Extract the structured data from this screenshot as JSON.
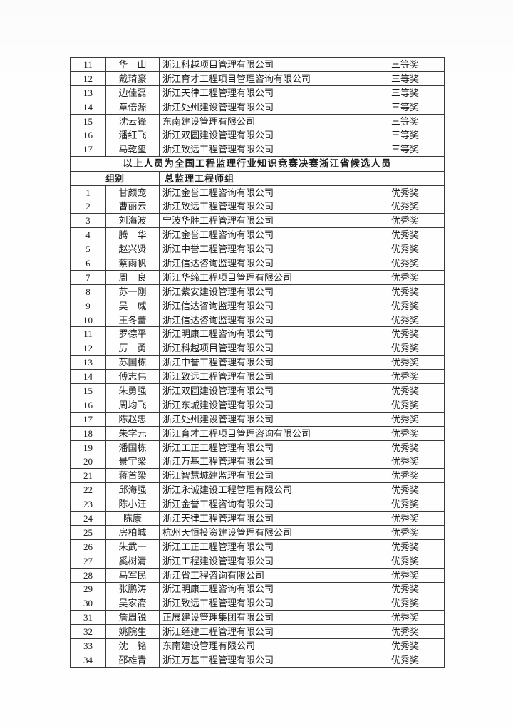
{
  "page": {
    "background": "#fefefe",
    "text_color": "#1c1c1c",
    "border_color": "#3a3a3a"
  },
  "table": {
    "third_prize_section": {
      "award_label": "三等奖",
      "rows": [
        {
          "no": "11",
          "name": "华　山",
          "company": "浙江科越项目管理有限公司",
          "award": "三等奖"
        },
        {
          "no": "12",
          "name": "戴琦豪",
          "company": "浙江育才工程项目管理咨询有限公司",
          "award": "三等奖"
        },
        {
          "no": "13",
          "name": "边佳磊",
          "company": "浙江天律工程管理有限公司",
          "award": "三等奖"
        },
        {
          "no": "14",
          "name": "章倍源",
          "company": "浙江处州建设管理有限公司",
          "award": "三等奖"
        },
        {
          "no": "15",
          "name": "沈云锋",
          "company": "东南建设管理有限公司",
          "award": "三等奖"
        },
        {
          "no": "16",
          "name": "潘红飞",
          "company": "浙江双圆建设管理有限公司",
          "award": "三等奖"
        },
        {
          "no": "17",
          "name": "马乾玺",
          "company": "浙江致远工程管理有限公司",
          "award": "三等奖"
        }
      ]
    },
    "banner": "以上人员为全国工程监理行业知识竞赛决赛浙江省候选人员",
    "group_row": {
      "label": "组别",
      "value": "总监理工程师组"
    },
    "excellence_section": {
      "award_label": "优秀奖",
      "rows": [
        {
          "no": "1",
          "name": "甘颜宠",
          "company": "浙江金誉工程咨询有限公司",
          "award": "优秀奖"
        },
        {
          "no": "2",
          "name": "曹丽云",
          "company": "浙江致远工程管理有限公司",
          "award": "优秀奖"
        },
        {
          "no": "3",
          "name": "刘海波",
          "company": "宁波华胜工程管理有限公司",
          "award": "优秀奖"
        },
        {
          "no": "4",
          "name": "腾　华",
          "company": "浙江金誉工程咨询有限公司",
          "award": "优秀奖"
        },
        {
          "no": "5",
          "name": "赵兴贤",
          "company": "浙江中誉工程管理有限公司",
          "award": "优秀奖"
        },
        {
          "no": "6",
          "name": "蔡雨帆",
          "company": "浙江信达咨询监理有限公司",
          "award": "优秀奖"
        },
        {
          "no": "7",
          "name": "周　良",
          "company": "浙江华缔工程项目管理有限公司",
          "award": "优秀奖"
        },
        {
          "no": "8",
          "name": "苏一刚",
          "company": "浙江紫安建设管理有限公司",
          "award": "优秀奖"
        },
        {
          "no": "9",
          "name": "吴　威",
          "company": "浙江信达咨询监理有限公司",
          "award": "优秀奖"
        },
        {
          "no": "10",
          "name": "王冬蕾",
          "company": "浙江信达咨询监理有限公司",
          "award": "优秀奖"
        },
        {
          "no": "11",
          "name": "罗德平",
          "company": "浙江明康工程咨询有限公司",
          "award": "优秀奖"
        },
        {
          "no": "12",
          "name": "厉　勇",
          "company": "浙江科越项目管理有限公司",
          "award": "优秀奖"
        },
        {
          "no": "13",
          "name": "苏国栋",
          "company": "浙江中誉工程管理有限公司",
          "award": "优秀奖"
        },
        {
          "no": "14",
          "name": "傅志伟",
          "company": "浙江致远工程管理有限公司",
          "award": "优秀奖"
        },
        {
          "no": "15",
          "name": "朱勇强",
          "company": "浙江双圆建设管理有限公司",
          "award": "优秀奖"
        },
        {
          "no": "16",
          "name": "周均飞",
          "company": "浙江东城建设管理有限公司",
          "award": "优秀奖"
        },
        {
          "no": "17",
          "name": "陈赵忠",
          "company": "浙江处州建设管理有限公司",
          "award": "优秀奖"
        },
        {
          "no": "18",
          "name": "朱学元",
          "company": "浙江育才工程项目管理咨询有限公司",
          "award": "优秀奖"
        },
        {
          "no": "19",
          "name": "潘国栋",
          "company": "浙江工正工程管理有限公司",
          "award": "优秀奖"
        },
        {
          "no": "20",
          "name": "景宇梁",
          "company": "浙江万基工程管理有限公司",
          "award": "优秀奖"
        },
        {
          "no": "21",
          "name": "蒋首梁",
          "company": "浙江智慧城建监理有限公司",
          "award": "优秀奖"
        },
        {
          "no": "22",
          "name": "邱海强",
          "company": "浙江永诚建设工程管理有限公司",
          "award": "优秀奖"
        },
        {
          "no": "23",
          "name": "陈小汪",
          "company": "浙江金誉工程咨询有限公司",
          "award": "优秀奖"
        },
        {
          "no": "24",
          "name": "陈康",
          "company": "浙江天律工程管理有限公司",
          "award": "优秀奖"
        },
        {
          "no": "25",
          "name": "房柏城",
          "company": "杭州天恒投资建设管理有限公司",
          "award": "优秀奖"
        },
        {
          "no": "26",
          "name": "朱武一",
          "company": "浙江工正工程管理有限公司",
          "award": "优秀奖"
        },
        {
          "no": "27",
          "name": "奚树清",
          "company": "浙江工程建设管理有限公司",
          "award": "优秀奖"
        },
        {
          "no": "28",
          "name": "马军民",
          "company": "浙江省工程咨询有限公司",
          "award": "优秀奖"
        },
        {
          "no": "29",
          "name": "张鹏涛",
          "company": "浙江明康工程咨询有限公司",
          "award": "优秀奖"
        },
        {
          "no": "30",
          "name": "吴家裔",
          "company": "浙江致远工程管理有限公司",
          "award": "优秀奖"
        },
        {
          "no": "31",
          "name": "詹周锐",
          "company": "正展建设管理集团有限公司",
          "award": "优秀奖"
        },
        {
          "no": "32",
          "name": "姚院生",
          "company": "浙江经建工程管理有限公司",
          "award": "优秀奖"
        },
        {
          "no": "33",
          "name": "沈　铭",
          "company": "东南建设管理有限公司",
          "award": "优秀奖"
        },
        {
          "no": "34",
          "name": "邵雄青",
          "company": "浙江万基工程管理有限公司",
          "award": "优秀奖"
        }
      ]
    }
  }
}
